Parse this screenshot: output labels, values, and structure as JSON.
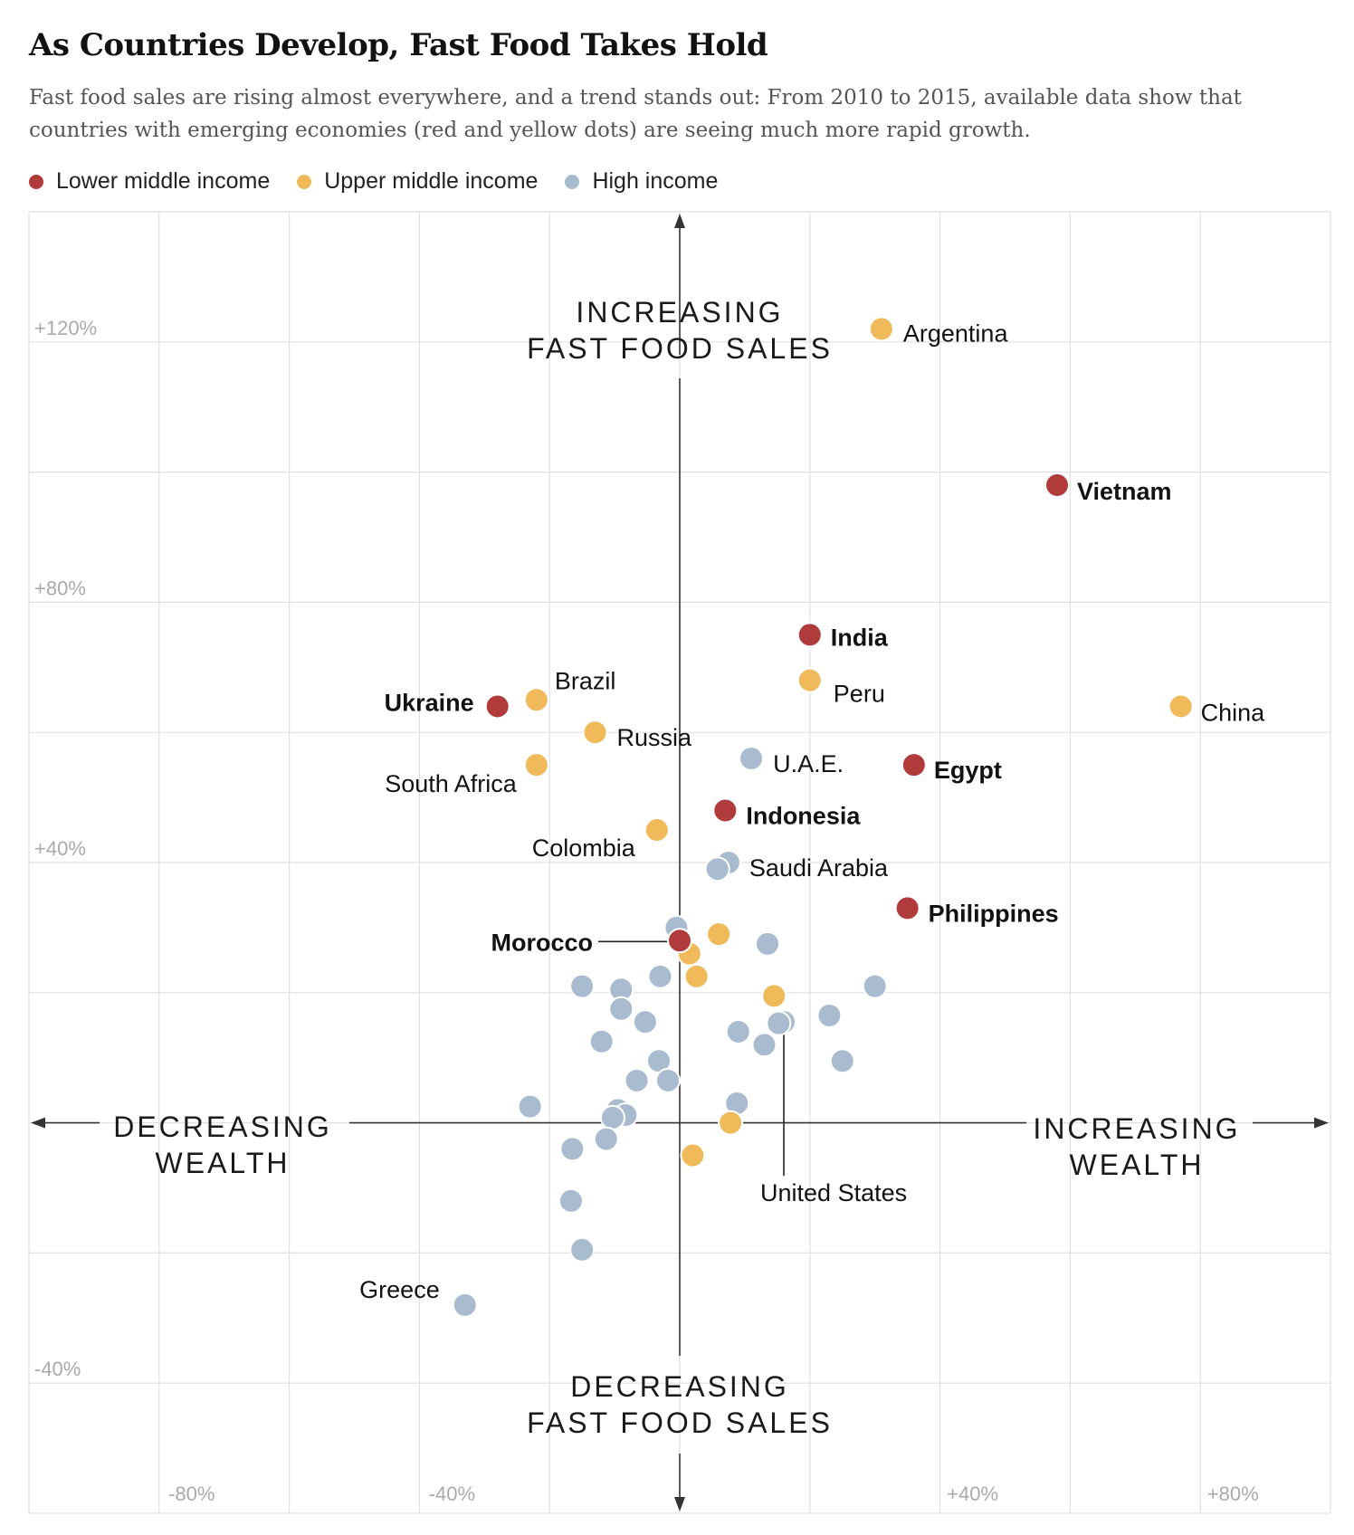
{
  "title": "As Countries Develop, Fast Food Takes Hold",
  "subtitle": "Fast food sales are rising almost everywhere, and a trend stands out: From 2010 to 2015, available data show that countries with emerging economies (red and yellow dots) are seeing much more rapid growth.",
  "colors": {
    "lower_middle": "#b13b3b",
    "upper_middle": "#f0b95a",
    "high": "#a9bccf",
    "grid": "#e0e0e0",
    "axis": "#333333",
    "tick": "#aaaaaa"
  },
  "legend": [
    {
      "group": "lower_middle",
      "label": "Lower middle income"
    },
    {
      "group": "upper_middle",
      "label": "Upper middle income"
    },
    {
      "group": "high",
      "label": "High income"
    }
  ],
  "chart_data": {
    "type": "scatter",
    "x_ticks": [
      "-80%",
      "-40%",
      "+40%",
      "+80%"
    ],
    "y_ticks": [
      "+120%",
      "+80%",
      "+40%",
      "-40%"
    ],
    "axis_text": {
      "up": [
        "INCREASING",
        "FAST FOOD SALES"
      ],
      "down": [
        "DECREASING",
        "FAST FOOD SALES"
      ],
      "left": [
        "DECREASING",
        "WEALTH"
      ],
      "right": [
        "INCREASING",
        "WEALTH"
      ]
    },
    "xlim": [
      -100,
      100
    ],
    "ylim": [
      -60,
      140
    ],
    "grid": true,
    "points": [
      {
        "x": 31,
        "y": 122,
        "group": "upper_middle",
        "label": "Argentina",
        "bold": false
      },
      {
        "x": 58,
        "y": 98,
        "group": "lower_middle",
        "label": "Vietnam",
        "bold": true
      },
      {
        "x": 20,
        "y": 75,
        "group": "lower_middle",
        "label": "India",
        "bold": true
      },
      {
        "x": 20,
        "y": 68,
        "group": "upper_middle",
        "label": "Peru",
        "bold": false
      },
      {
        "x": 77,
        "y": 64,
        "group": "upper_middle",
        "label": "China",
        "bold": false
      },
      {
        "x": -22,
        "y": 65,
        "group": "upper_middle",
        "label": "Brazil",
        "bold": false
      },
      {
        "x": -28,
        "y": 64,
        "group": "lower_middle",
        "label": "Ukraine",
        "bold": true
      },
      {
        "x": -13,
        "y": 60,
        "group": "upper_middle",
        "label": "Russia",
        "bold": false
      },
      {
        "x": 11,
        "y": 56,
        "group": "high",
        "label": "U.A.E.",
        "bold": false
      },
      {
        "x": 36,
        "y": 55,
        "group": "lower_middle",
        "label": "Egypt",
        "bold": true
      },
      {
        "x": -22,
        "y": 55,
        "group": "upper_middle",
        "label": "South Africa",
        "bold": false
      },
      {
        "x": 7,
        "y": 48,
        "group": "lower_middle",
        "label": "Indonesia",
        "bold": true
      },
      {
        "x": -3.5,
        "y": 45,
        "group": "upper_middle",
        "label": "Colombia",
        "bold": false
      },
      {
        "x": 7.5,
        "y": 40,
        "group": "high",
        "label": "Saudi Arabia",
        "bold": false
      },
      {
        "x": 5.8,
        "y": 39,
        "group": "high",
        "label": "",
        "bold": false
      },
      {
        "x": 35,
        "y": 33,
        "group": "lower_middle",
        "label": "Philippines",
        "bold": true
      },
      {
        "x": 0,
        "y": 28,
        "group": "lower_middle",
        "label": "Morocco",
        "bold": true
      },
      {
        "x": -0.5,
        "y": 30,
        "group": "high",
        "label": "",
        "bold": false
      },
      {
        "x": 1.5,
        "y": 26,
        "group": "upper_middle",
        "label": "",
        "bold": false
      },
      {
        "x": 6,
        "y": 29,
        "group": "upper_middle",
        "label": "",
        "bold": false
      },
      {
        "x": 13.5,
        "y": 27.5,
        "group": "high",
        "label": "",
        "bold": false
      },
      {
        "x": 2.6,
        "y": 22.5,
        "group": "upper_middle",
        "label": "",
        "bold": false
      },
      {
        "x": -15,
        "y": 21,
        "group": "high",
        "label": "",
        "bold": false
      },
      {
        "x": -9,
        "y": 20.5,
        "group": "high",
        "label": "",
        "bold": false
      },
      {
        "x": -3,
        "y": 22.5,
        "group": "high",
        "label": "",
        "bold": false
      },
      {
        "x": 14.5,
        "y": 19.5,
        "group": "upper_middle",
        "label": "",
        "bold": false
      },
      {
        "x": 30,
        "y": 21,
        "group": "high",
        "label": "",
        "bold": false
      },
      {
        "x": -9,
        "y": 17.5,
        "group": "high",
        "label": "",
        "bold": false
      },
      {
        "x": -5.3,
        "y": 15.5,
        "group": "high",
        "label": "",
        "bold": false
      },
      {
        "x": 23,
        "y": 16.5,
        "group": "high",
        "label": "",
        "bold": false
      },
      {
        "x": 16,
        "y": 15.5,
        "group": "high",
        "label": "United States",
        "bold": false
      },
      {
        "x": 15.2,
        "y": 15.3,
        "group": "high",
        "label": "",
        "bold": false
      },
      {
        "x": 9,
        "y": 14,
        "group": "high",
        "label": "",
        "bold": false
      },
      {
        "x": -12,
        "y": 12.5,
        "group": "high",
        "label": "",
        "bold": false
      },
      {
        "x": 13,
        "y": 12,
        "group": "high",
        "label": "",
        "bold": false
      },
      {
        "x": 25,
        "y": 9.5,
        "group": "high",
        "label": "",
        "bold": false
      },
      {
        "x": -3.2,
        "y": 9.5,
        "group": "high",
        "label": "",
        "bold": false
      },
      {
        "x": -6.6,
        "y": 6.5,
        "group": "high",
        "label": "",
        "bold": false
      },
      {
        "x": -1.8,
        "y": 6.5,
        "group": "high",
        "label": "",
        "bold": false
      },
      {
        "x": -23,
        "y": 2.5,
        "group": "high",
        "label": "",
        "bold": false
      },
      {
        "x": -9.5,
        "y": 2,
        "group": "high",
        "label": "",
        "bold": false
      },
      {
        "x": 8.8,
        "y": 3,
        "group": "high",
        "label": "",
        "bold": false
      },
      {
        "x": -8.3,
        "y": 1.2,
        "group": "high",
        "label": "",
        "bold": false
      },
      {
        "x": -10.3,
        "y": 0.8,
        "group": "high",
        "label": "",
        "bold": false
      },
      {
        "x": 7.8,
        "y": 0,
        "group": "upper_middle",
        "label": "",
        "bold": false
      },
      {
        "x": -11.3,
        "y": -2.5,
        "group": "high",
        "label": "",
        "bold": false
      },
      {
        "x": -16.5,
        "y": -4,
        "group": "high",
        "label": "",
        "bold": false
      },
      {
        "x": 2,
        "y": -5,
        "group": "upper_middle",
        "label": "",
        "bold": false
      },
      {
        "x": -16.7,
        "y": -12,
        "group": "high",
        "label": "",
        "bold": false
      },
      {
        "x": -15,
        "y": -19.5,
        "group": "high",
        "label": "",
        "bold": false
      },
      {
        "x": -33,
        "y": -28,
        "group": "high",
        "label": "Greece",
        "bold": false
      }
    ]
  }
}
